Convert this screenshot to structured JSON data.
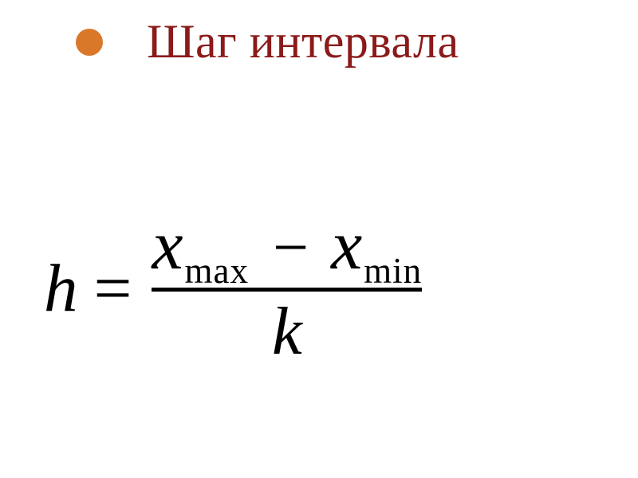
{
  "colors": {
    "bullet": "#d97828",
    "title": "#8b1a1a",
    "formula": "#000000",
    "background": "#ffffff"
  },
  "title": {
    "text": "Шаг интервала",
    "fontsize": 60
  },
  "formula": {
    "lhs_var": "h",
    "equals": "=",
    "numerator": {
      "var1": "x",
      "sub1": "max",
      "operator": "−",
      "var2": "x",
      "sub2": "min"
    },
    "denominator": "k",
    "var_fontsize": 85,
    "sub_fontsize": 45,
    "bar_thickness": 5
  }
}
